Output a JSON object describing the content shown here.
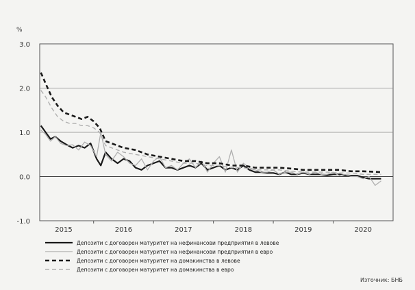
{
  "chart_data": {
    "type": "line",
    "ylabel": "%",
    "ylim": [
      -1.0,
      3.0
    ],
    "yticks": [
      "3.0",
      "2.0",
      "1.0",
      "0.0",
      "-1.0"
    ],
    "ytick_values": [
      3.0,
      2.0,
      1.0,
      0.0,
      -1.0
    ],
    "xlim": [
      2014.6,
      2020.5
    ],
    "year_labels": [
      "2015",
      "2016",
      "2017",
      "2018",
      "2019",
      "2020"
    ],
    "year_positions": [
      2015.0,
      2016.0,
      2017.0,
      2018.0,
      2019.0,
      2020.0
    ],
    "grid": true,
    "legend_position": "bottom",
    "source_note": "Източник: БНБ",
    "series": [
      {
        "name": "Депозити с договорен матуритет на нефинансови предприятия в левове",
        "color": "#1a1a1a",
        "style": "solid-thick",
        "x": [
          2014.62,
          2014.7,
          2014.78,
          2014.86,
          2014.95,
          2015.05,
          2015.15,
          2015.25,
          2015.35,
          2015.45,
          2015.55,
          2015.62,
          2015.7,
          2015.8,
          2015.9,
          2016.0,
          2016.1,
          2016.2,
          2016.3,
          2016.4,
          2016.5,
          2016.6,
          2016.7,
          2016.8,
          2016.9,
          2017.0,
          2017.1,
          2017.2,
          2017.3,
          2017.4,
          2017.5,
          2017.6,
          2017.7,
          2017.8,
          2017.9,
          2018.0,
          2018.1,
          2018.2,
          2018.3,
          2018.4,
          2018.5,
          2018.6,
          2018.7,
          2018.8,
          2018.9,
          2019.0,
          2019.1,
          2019.2,
          2019.3,
          2019.4,
          2019.5,
          2019.6,
          2019.7,
          2019.8,
          2019.9,
          2020.0,
          2020.1,
          2020.2,
          2020.3
        ],
        "y": [
          1.15,
          1.0,
          0.85,
          0.9,
          0.8,
          0.72,
          0.65,
          0.7,
          0.65,
          0.75,
          0.4,
          0.25,
          0.55,
          0.4,
          0.3,
          0.4,
          0.35,
          0.2,
          0.15,
          0.25,
          0.3,
          0.35,
          0.2,
          0.2,
          0.15,
          0.2,
          0.25,
          0.2,
          0.3,
          0.15,
          0.2,
          0.25,
          0.15,
          0.2,
          0.15,
          0.25,
          0.15,
          0.1,
          0.1,
          0.08,
          0.08,
          0.05,
          0.1,
          0.05,
          0.05,
          0.08,
          0.05,
          0.05,
          0.05,
          0.03,
          0.05,
          0.05,
          0.03,
          0.02,
          0.02,
          -0.02,
          -0.05,
          -0.05,
          -0.05
        ]
      },
      {
        "name": "Депозити с договорен матуритет на нефинансови предприятия в евро",
        "color": "#b0b0b0",
        "style": "solid-thin",
        "x": [
          2014.62,
          2014.7,
          2014.78,
          2014.86,
          2014.95,
          2015.05,
          2015.15,
          2015.25,
          2015.35,
          2015.45,
          2015.55,
          2015.62,
          2015.7,
          2015.8,
          2015.9,
          2016.0,
          2016.1,
          2016.2,
          2016.3,
          2016.4,
          2016.5,
          2016.6,
          2016.7,
          2016.8,
          2016.9,
          2017.0,
          2017.1,
          2017.2,
          2017.3,
          2017.4,
          2017.5,
          2017.6,
          2017.7,
          2017.8,
          2017.9,
          2018.0,
          2018.1,
          2018.2,
          2018.3,
          2018.4,
          2018.5,
          2018.6,
          2018.7,
          2018.8,
          2018.9,
          2019.0,
          2019.1,
          2019.2,
          2019.3,
          2019.4,
          2019.5,
          2019.6,
          2019.7,
          2019.8,
          2019.9,
          2020.0,
          2020.1,
          2020.2,
          2020.3
        ],
        "y": [
          1.05,
          0.95,
          0.8,
          0.9,
          0.75,
          0.7,
          0.72,
          0.6,
          0.78,
          0.7,
          0.45,
          1.0,
          0.5,
          0.35,
          0.55,
          0.45,
          0.3,
          0.25,
          0.4,
          0.15,
          0.35,
          0.45,
          0.2,
          0.25,
          0.15,
          0.3,
          0.4,
          0.2,
          0.35,
          0.1,
          0.3,
          0.45,
          0.1,
          0.6,
          0.1,
          0.3,
          0.2,
          0.15,
          0.1,
          0.1,
          0.15,
          0.05,
          0.1,
          0.1,
          0.05,
          0.1,
          0.05,
          0.1,
          0.05,
          0.05,
          0.1,
          0.02,
          0.05,
          0.0,
          0.0,
          -0.05,
          0.0,
          -0.2,
          -0.1
        ]
      },
      {
        "name": "Депозити с договорен матуритет на домакинства в левове",
        "color": "#1a1a1a",
        "style": "dashed-thick",
        "x": [
          2014.62,
          2014.7,
          2014.8,
          2014.9,
          2015.0,
          2015.1,
          2015.2,
          2015.3,
          2015.4,
          2015.5,
          2015.6,
          2015.7,
          2015.8,
          2015.9,
          2016.0,
          2016.2,
          2016.4,
          2016.6,
          2016.8,
          2017.0,
          2017.2,
          2017.4,
          2017.6,
          2017.8,
          2018.0,
          2018.2,
          2018.4,
          2018.6,
          2018.8,
          2019.0,
          2019.2,
          2019.4,
          2019.6,
          2019.8,
          2020.0,
          2020.3
        ],
        "y": [
          2.35,
          2.1,
          1.8,
          1.6,
          1.45,
          1.4,
          1.35,
          1.3,
          1.35,
          1.25,
          1.1,
          0.8,
          0.75,
          0.7,
          0.65,
          0.6,
          0.5,
          0.45,
          0.4,
          0.35,
          0.35,
          0.3,
          0.3,
          0.25,
          0.25,
          0.2,
          0.2,
          0.2,
          0.18,
          0.15,
          0.15,
          0.15,
          0.15,
          0.12,
          0.12,
          0.1
        ]
      },
      {
        "name": "Депозити с договорен матуритет на домакинства в евро",
        "color": "#b0b0b0",
        "style": "dashed-thin",
        "x": [
          2014.62,
          2014.7,
          2014.8,
          2014.9,
          2015.0,
          2015.1,
          2015.2,
          2015.3,
          2015.4,
          2015.5,
          2015.6,
          2015.7,
          2015.8,
          2015.9,
          2016.0,
          2016.2,
          2016.4,
          2016.6,
          2016.8,
          2017.0,
          2017.2,
          2017.4,
          2017.6,
          2017.8,
          2018.0,
          2018.2,
          2018.4,
          2018.6,
          2018.8,
          2019.0,
          2019.2,
          2019.4,
          2019.6,
          2019.8,
          2020.0,
          2020.3
        ],
        "y": [
          1.95,
          1.8,
          1.55,
          1.35,
          1.25,
          1.2,
          1.2,
          1.15,
          1.15,
          1.1,
          1.0,
          0.7,
          0.65,
          0.6,
          0.55,
          0.5,
          0.45,
          0.4,
          0.35,
          0.3,
          0.3,
          0.25,
          0.25,
          0.2,
          0.2,
          0.15,
          0.15,
          0.15,
          0.12,
          0.1,
          0.1,
          0.1,
          0.08,
          0.08,
          0.05,
          0.05
        ]
      }
    ]
  }
}
